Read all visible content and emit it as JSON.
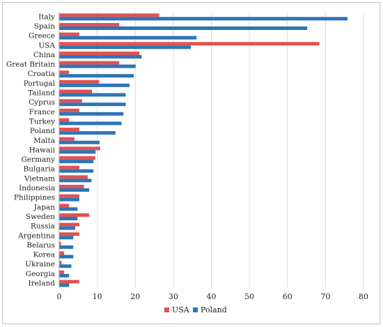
{
  "chart_data": {
    "type": "bar",
    "orientation": "horizontal",
    "categories": [
      "Italy",
      "Spain",
      "Greece",
      "USA",
      "China",
      "Great Britain",
      "Croatia",
      "Portugal",
      "Tailand",
      "Cyprus",
      "France",
      "Turkey",
      "Poland",
      "Malta",
      "Hawaii",
      "Germany",
      "Bulgaria",
      "Vietnam",
      "Indonesia",
      "Philippines",
      "Japan",
      "Sweden",
      "Russia",
      "Argentina",
      "Belarus",
      "Korea",
      "Ukraine",
      "Georgia",
      "Ireland"
    ],
    "series": [
      {
        "name": "USA",
        "color": "#e05252",
        "values": [
          26.3,
          15.8,
          5.3,
          68.4,
          21.1,
          15.8,
          2.6,
          10.5,
          8.6,
          6.0,
          5.3,
          2.6,
          5.3,
          4.0,
          10.8,
          9.5,
          5.3,
          7.5,
          6.5,
          5.3,
          2.6,
          7.9,
          5.3,
          5.3,
          0.5,
          1.3,
          0.6,
          1.3,
          5.3
        ]
      },
      {
        "name": "Poland",
        "color": "#2e75b6",
        "values": [
          75.8,
          65.2,
          36.1,
          34.6,
          21.7,
          20.1,
          19.6,
          18.5,
          17.5,
          17.5,
          16.9,
          16.4,
          14.8,
          10.6,
          9.6,
          9.0,
          9.0,
          8.5,
          7.9,
          5.3,
          4.8,
          4.8,
          4.2,
          3.7,
          3.7,
          3.7,
          3.2,
          2.6,
          2.6
        ]
      }
    ],
    "xlim": [
      0,
      80
    ],
    "xticks": [
      "0",
      "10",
      "20",
      "30",
      "40",
      "50",
      "60",
      "70",
      "80"
    ],
    "xlabel": "",
    "ylabel": "",
    "title": "",
    "grid": true,
    "legend_position": "bottom-center"
  }
}
